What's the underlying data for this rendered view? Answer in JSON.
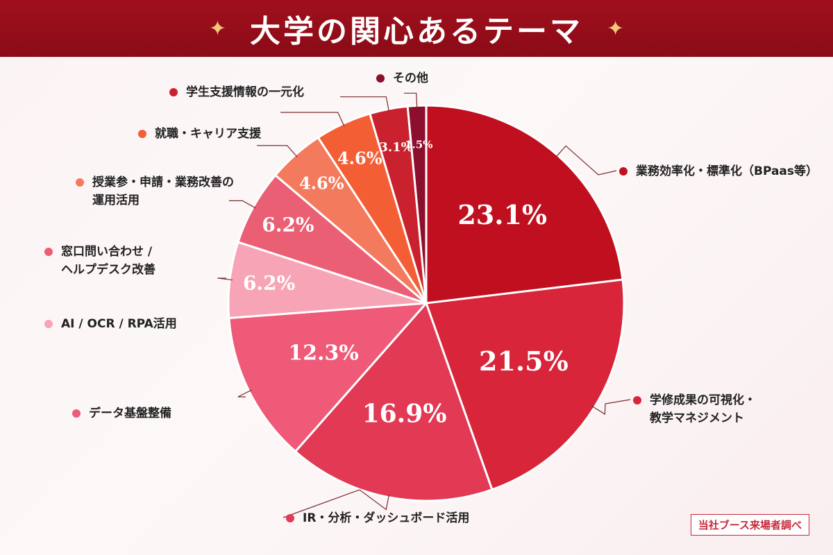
{
  "header": {
    "title": "大学の関心あるテーマ",
    "sparkle": "✦"
  },
  "source_note": "当社ブース来場者調べ",
  "chart_data": {
    "type": "pie",
    "title": "大学の関心あるテーマ",
    "slices": [
      {
        "label": [
          "業務効率化・標準化（BPaas等）"
        ],
        "value": 23.1,
        "display": "23.1",
        "color": "#c0101f"
      },
      {
        "label": [
          "学修成果の可視化・",
          "教学マネジメント"
        ],
        "value": 21.5,
        "display": "21.5",
        "color": "#d8253a"
      },
      {
        "label": [
          "IR・分析・ダッシュボード活用"
        ],
        "value": 16.9,
        "display": "16.9",
        "color": "#e23a55"
      },
      {
        "label": [
          "データ基盤整備"
        ],
        "value": 12.3,
        "display": "12.3",
        "color": "#ee5a78"
      },
      {
        "label": [
          "AI / OCR / RPA活用"
        ],
        "value": 6.2,
        "display": "6.2",
        "color": "#f7a5b6"
      },
      {
        "label": [
          "窓口問い合わせ /",
          "ヘルプデスク改善"
        ],
        "value": 6.2,
        "display": "6.2",
        "color": "#eb5f75"
      },
      {
        "label": [
          "授業参・申請・業務改善の",
          "運用活用"
        ],
        "value": 4.6,
        "display": "4.6",
        "color": "#f47a5e"
      },
      {
        "label": [
          "就職・キャリア支援"
        ],
        "value": 4.6,
        "display": "4.6",
        "color": "#f35e35"
      },
      {
        "label": [
          "学生支援情報の一元化"
        ],
        "value": 3.1,
        "display": "3.1",
        "color": "#c9222e"
      },
      {
        "label": [
          "その他"
        ],
        "value": 1.5,
        "display": "1.5",
        "color": "#8c0f2e"
      }
    ]
  }
}
